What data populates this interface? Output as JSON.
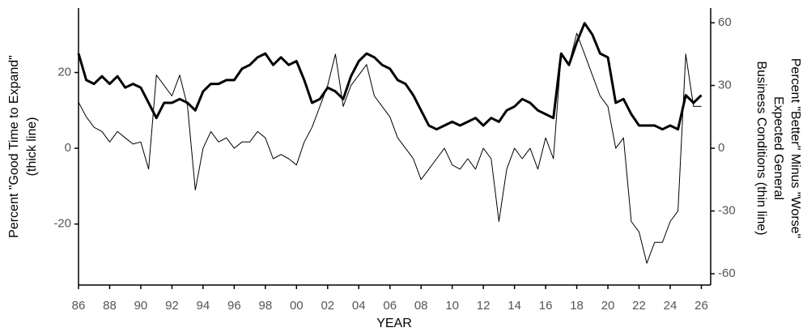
{
  "chart_data": {
    "type": "line",
    "xlabel": "YEAR",
    "ylabel": [
      "Percent \"Good Time to Expand\"",
      "(thick line)"
    ],
    "y2label": [
      "Percent \"Better\" Minus \"Worse\"",
      "Expected General",
      "Business Conditions (thin line)"
    ],
    "x": [
      1986,
      1986.5,
      1987,
      1987.5,
      1988,
      1988.5,
      1989,
      1989.5,
      1990,
      1990.5,
      1991,
      1991.5,
      1992,
      1992.5,
      1993,
      1993.5,
      1994,
      1994.5,
      1995,
      1995.5,
      1996,
      1996.5,
      1997,
      1997.5,
      1998,
      1998.5,
      1999,
      1999.5,
      2000,
      2000.5,
      2001,
      2001.5,
      2002,
      2002.5,
      2003,
      2003.5,
      2004,
      2004.5,
      2005,
      2005.5,
      2006,
      2006.5,
      2007,
      2007.5,
      2008,
      2008.5,
      2009,
      2009.5,
      2010,
      2010.5,
      2011,
      2011.5,
      2012,
      2012.5,
      2013,
      2013.5,
      2014,
      2014.5,
      2015,
      2015.5,
      2016,
      2016.5,
      2017,
      2017.5,
      2018,
      2018.5,
      2019,
      2019.5,
      2020,
      2020.5,
      2021,
      2021.5,
      2022,
      2022.5,
      2023,
      2023.5,
      2024,
      2024.5,
      2025,
      2025.5,
      2026
    ],
    "series": [
      {
        "name": "Good Time to Expand",
        "color": "#000000",
        "width": 3,
        "values": [
          25,
          18,
          17,
          19,
          17,
          19,
          16,
          17,
          16,
          12,
          8,
          12,
          12,
          13,
          12,
          10,
          15,
          17,
          17,
          18,
          18,
          21,
          22,
          24,
          25,
          22,
          24,
          22,
          23,
          18,
          12,
          13,
          16,
          15,
          13,
          19,
          23,
          25,
          24,
          22,
          21,
          18,
          17,
          14,
          10,
          6,
          5,
          6,
          7,
          6,
          7,
          8,
          6,
          8,
          7,
          10,
          11,
          13,
          12,
          10,
          9,
          8,
          25,
          22,
          28,
          33,
          30,
          25,
          24,
          12,
          13,
          9,
          6,
          6,
          6,
          5,
          6,
          5,
          14,
          12,
          14
        ]
      },
      {
        "name": "Better Minus Worse Expected General Business Conditions",
        "color": "#000000",
        "width": 1,
        "axis": "y2",
        "values": [
          22,
          15,
          10,
          8,
          3,
          8,
          5,
          2,
          3,
          -10,
          35,
          30,
          25,
          35,
          20,
          -20,
          0,
          8,
          3,
          5,
          0,
          3,
          3,
          8,
          5,
          -5,
          -3,
          -5,
          -8,
          3,
          10,
          20,
          30,
          45,
          20,
          30,
          35,
          40,
          25,
          20,
          15,
          5,
          0,
          -5,
          -15,
          -10,
          -5,
          0,
          -8,
          -10,
          -5,
          -10,
          0,
          -5,
          -35,
          -10,
          0,
          -5,
          0,
          -10,
          5,
          -5,
          45,
          40,
          55,
          45,
          35,
          25,
          20,
          0,
          5,
          -35,
          -40,
          -55,
          -45,
          -45,
          -35,
          -30,
          45,
          20,
          20
        ]
      }
    ],
    "xlim": [
      1986,
      2026.6
    ],
    "xticks": [
      {
        "value": 1986,
        "label": "86"
      },
      {
        "value": 1988,
        "label": "88"
      },
      {
        "value": 1990,
        "label": "90"
      },
      {
        "value": 1992,
        "label": "92"
      },
      {
        "value": 1994,
        "label": "94"
      },
      {
        "value": 1996,
        "label": "96"
      },
      {
        "value": 1998,
        "label": "98"
      },
      {
        "value": 2000,
        "label": "00"
      },
      {
        "value": 2002,
        "label": "02"
      },
      {
        "value": 2004,
        "label": "04"
      },
      {
        "value": 2006,
        "label": "06"
      },
      {
        "value": 2008,
        "label": "08"
      },
      {
        "value": 2010,
        "label": "10"
      },
      {
        "value": 2012,
        "label": "12"
      },
      {
        "value": 2014,
        "label": "14"
      },
      {
        "value": 2016,
        "label": "16"
      },
      {
        "value": 2018,
        "label": "18"
      },
      {
        "value": 2020,
        "label": "20"
      },
      {
        "value": 2022,
        "label": "22"
      },
      {
        "value": 2024,
        "label": "24"
      },
      {
        "value": 2026,
        "label": "26"
      }
    ],
    "ylim": [
      -36.1,
      37
    ],
    "yticks": [
      -20,
      0,
      20
    ],
    "y2lim": [
      -65.4,
      67
    ],
    "y2ticks": [
      -60,
      -30,
      0,
      30,
      60
    ],
    "grid": false
  }
}
